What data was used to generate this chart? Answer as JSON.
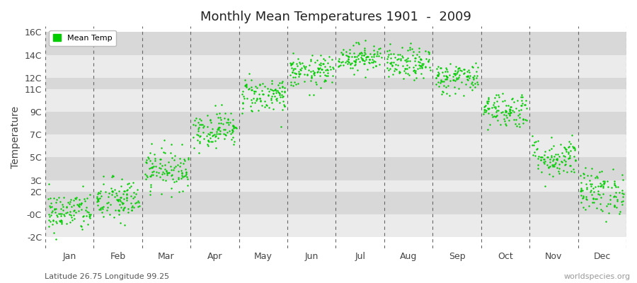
{
  "title": "Monthly Mean Temperatures 1901  -  2009",
  "ylabel": "Temperature",
  "subtitle": "Latitude 26.75 Longitude 99.25",
  "watermark": "worldspecies.org",
  "dot_color": "#00cc00",
  "dot_size": 3,
  "background_color": "#ffffff",
  "band_colors": [
    "#ebebeb",
    "#d8d8d8"
  ],
  "ytick_positions": [
    -2,
    0,
    2,
    3,
    5,
    7,
    9,
    11,
    12,
    14,
    16
  ],
  "ytick_labels": [
    "-2C",
    "-0C",
    "2C",
    "3C",
    "5C",
    "7C",
    "9C",
    "11C",
    "12C",
    "14C",
    "16C"
  ],
  "ylim": [
    -3.0,
    16.5
  ],
  "months": [
    "Jan",
    "Feb",
    "Mar",
    "Apr",
    "May",
    "Jun",
    "Jul",
    "Aug",
    "Sep",
    "Oct",
    "Nov",
    "Dec"
  ],
  "monthly_means": [
    0.2,
    1.2,
    4.0,
    7.5,
    10.5,
    12.5,
    13.8,
    13.2,
    12.0,
    9.2,
    5.0,
    2.0
  ],
  "monthly_stds": [
    0.9,
    1.0,
    0.9,
    0.8,
    0.8,
    0.7,
    0.6,
    0.7,
    0.7,
    0.8,
    0.9,
    1.0
  ],
  "n_years": 109,
  "seed": 42
}
